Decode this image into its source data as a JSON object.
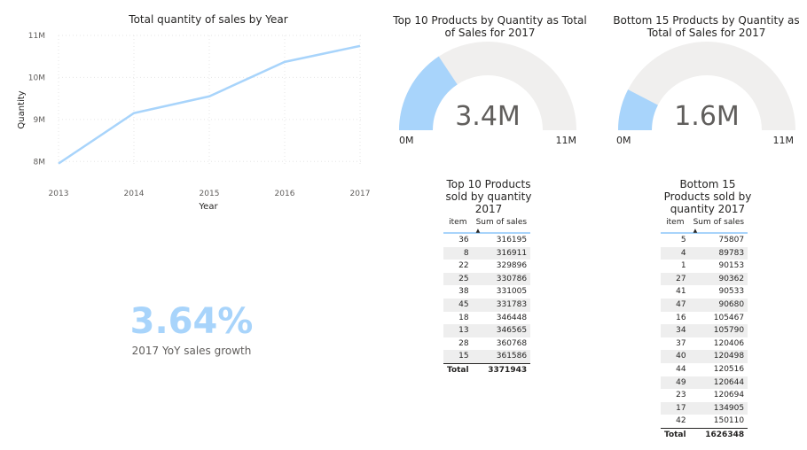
{
  "line_chart": {
    "title": "Total quantity of sales by Year",
    "xlabel": "Year",
    "ylabel": "Quantity",
    "y_ticks": [
      "8M",
      "9M",
      "10M",
      "11M"
    ],
    "color": "#a8d4fb"
  },
  "gauge_top": {
    "title": "Top 10 Products by Quantity as Total of Sales for 2017",
    "value_label": "3.4M",
    "min_label": "0M",
    "max_label": "11M",
    "value": 3.37,
    "max": 10.75,
    "fill_color": "#a8d4fb",
    "track_color": "#f0efee"
  },
  "gauge_bottom": {
    "title": "Bottom 15 Products by Quantity as Total of Sales for 2017",
    "value_label": "1.6M",
    "min_label": "0M",
    "max_label": "11M",
    "value": 1.63,
    "max": 10.75,
    "fill_color": "#a8d4fb",
    "track_color": "#f0efee"
  },
  "kpi": {
    "value": "3.64%",
    "label": "2017 YoY sales growth"
  },
  "table_top": {
    "title": "Top 10 Products sold by quantity 2017",
    "headers": [
      "item",
      "Sum of sales"
    ],
    "rows": [
      [
        "36",
        "316195"
      ],
      [
        "8",
        "316911"
      ],
      [
        "22",
        "329896"
      ],
      [
        "25",
        "330786"
      ],
      [
        "38",
        "331005"
      ],
      [
        "45",
        "331783"
      ],
      [
        "18",
        "346448"
      ],
      [
        "13",
        "346565"
      ],
      [
        "28",
        "360768"
      ],
      [
        "15",
        "361586"
      ]
    ],
    "total_label": "Total",
    "total_value": "3371943"
  },
  "table_bottom": {
    "title": "Bottom 15 Products sold by quantity 2017",
    "headers": [
      "item",
      "Sum of sales"
    ],
    "rows": [
      [
        "5",
        "75807"
      ],
      [
        "4",
        "89783"
      ],
      [
        "1",
        "90153"
      ],
      [
        "27",
        "90362"
      ],
      [
        "41",
        "90533"
      ],
      [
        "47",
        "90680"
      ],
      [
        "16",
        "105467"
      ],
      [
        "34",
        "105790"
      ],
      [
        "37",
        "120406"
      ],
      [
        "40",
        "120498"
      ],
      [
        "44",
        "120516"
      ],
      [
        "49",
        "120644"
      ],
      [
        "23",
        "120694"
      ],
      [
        "17",
        "134905"
      ],
      [
        "42",
        "150110"
      ]
    ],
    "total_label": "Total",
    "total_value": "1626348"
  },
  "chart_data": [
    {
      "type": "line",
      "title": "Total quantity of sales by Year",
      "xlabel": "Year",
      "ylabel": "Quantity",
      "x": [
        "2013",
        "2014",
        "2015",
        "2016",
        "2017"
      ],
      "series": [
        {
          "values": [
            7950000,
            9150000,
            9550000,
            10370000,
            10750000
          ]
        }
      ],
      "ylim": [
        7900000,
        11000000
      ],
      "y_ticks": [
        8000000,
        9000000,
        10000000,
        11000000
      ],
      "grid": true
    },
    {
      "type": "gauge",
      "title": "Top 10 Products by Quantity as Total of Sales for 2017",
      "value": 3371943,
      "min": 0,
      "max": 10750000
    },
    {
      "type": "gauge",
      "title": "Bottom 15 Products by Quantity as Total of Sales for 2017",
      "value": 1626348,
      "min": 0,
      "max": 10750000
    }
  ]
}
